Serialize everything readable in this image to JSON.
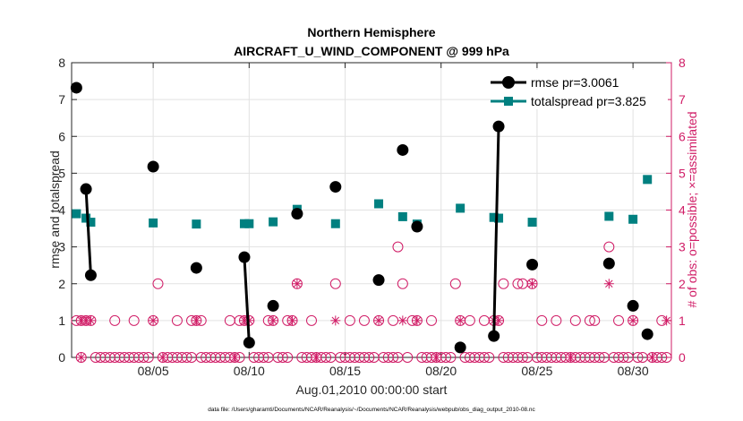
{
  "chart_data": {
    "type": "line",
    "title_line1": "Northern Hemisphere",
    "title_line2": "AIRCRAFT_U_WIND_COMPONENT @ 999 hPa",
    "xlabel": "Aug.01,2010 00:00:00 start",
    "ylabel_left": "rmse and totalspread",
    "ylabel_right": "# of obs: o=possible; ×=assimilated",
    "footnote": "data file: /Users/gharamti/Documents/NCAR/Reanalysis/~/Documents/NCAR/Reanalysis/webpub/obs_diag_output_2010-08.nc",
    "xlim": [
      0.75,
      32.0
    ],
    "ylim_left": [
      0,
      8
    ],
    "ylim_right": [
      0,
      8
    ],
    "x_ticks": [
      {
        "x": 5.0,
        "label": "08/05"
      },
      {
        "x": 10.0,
        "label": "08/10"
      },
      {
        "x": 15.0,
        "label": "08/15"
      },
      {
        "x": 20.0,
        "label": "08/20"
      },
      {
        "x": 25.0,
        "label": "08/25"
      },
      {
        "x": 30.0,
        "label": "08/30"
      }
    ],
    "y_ticks_left": [
      0,
      1,
      2,
      3,
      4,
      5,
      6,
      7,
      8
    ],
    "y_ticks_right": [
      0,
      1,
      2,
      3,
      4,
      5,
      6,
      7,
      8
    ],
    "legend": [
      {
        "name": "rmse pr=3.0061",
        "color": "#000000",
        "marker": "circle"
      },
      {
        "name": "totalspread pr=3.825",
        "color": "#008080",
        "marker": "square"
      }
    ],
    "colors": {
      "rmse": "#000000",
      "spread": "#008080",
      "obs": "#d01c66",
      "grid": "#e2e2e2",
      "axis": "#262626"
    },
    "series": [
      {
        "name": "rmse",
        "segments": [
          [
            [
              1.0,
              7.32
            ]
          ],
          [
            [
              1.5,
              4.57
            ],
            [
              1.75,
              2.23
            ]
          ],
          [
            [
              5.0,
              5.18
            ]
          ],
          [
            [
              7.25,
              2.43
            ]
          ],
          [
            [
              9.75,
              2.72
            ],
            [
              10.0,
              0.4
            ]
          ],
          [
            [
              11.25,
              1.4
            ]
          ],
          [
            [
              12.5,
              3.9
            ]
          ],
          [
            [
              14.5,
              4.63
            ]
          ],
          [
            [
              16.75,
              2.1
            ]
          ],
          [
            [
              18.0,
              5.63
            ]
          ],
          [
            [
              18.75,
              3.55
            ]
          ],
          [
            [
              21.0,
              0.27
            ]
          ],
          [
            [
              22.75,
              0.58
            ],
            [
              23.0,
              6.27
            ]
          ],
          [
            [
              24.75,
              2.52
            ]
          ],
          [
            [
              28.75,
              2.55
            ]
          ],
          [
            [
              30.0,
              1.4
            ]
          ],
          [
            [
              30.75,
              0.63
            ]
          ]
        ]
      },
      {
        "name": "totalspread",
        "segments": [
          [
            [
              1.0,
              3.9
            ]
          ],
          [
            [
              1.5,
              3.78
            ],
            [
              1.75,
              3.67
            ]
          ],
          [
            [
              5.0,
              3.65
            ]
          ],
          [
            [
              7.25,
              3.62
            ]
          ],
          [
            [
              9.75,
              3.63
            ],
            [
              10.0,
              3.63
            ]
          ],
          [
            [
              11.25,
              3.68
            ]
          ],
          [
            [
              12.5,
              4.02
            ]
          ],
          [
            [
              14.5,
              3.63
            ]
          ],
          [
            [
              16.75,
              4.17
            ]
          ],
          [
            [
              18.0,
              3.82
            ]
          ],
          [
            [
              18.75,
              3.62
            ]
          ],
          [
            [
              21.0,
              4.05
            ]
          ],
          [
            [
              22.75,
              3.8
            ],
            [
              23.0,
              3.78
            ]
          ],
          [
            [
              24.75,
              3.67
            ]
          ],
          [
            [
              28.75,
              3.83
            ]
          ],
          [
            [
              30.0,
              3.75
            ]
          ],
          [
            [
              30.75,
              4.83
            ]
          ]
        ]
      }
    ],
    "obs_possible": [
      [
        1.0,
        1
      ],
      [
        1.25,
        1
      ],
      [
        1.5,
        1
      ],
      [
        1.75,
        1
      ],
      [
        3.0,
        1
      ],
      [
        4.0,
        1
      ],
      [
        5.0,
        1
      ],
      [
        5.25,
        2
      ],
      [
        6.25,
        1
      ],
      [
        7.0,
        1
      ],
      [
        7.25,
        1
      ],
      [
        7.5,
        1
      ],
      [
        9.0,
        1
      ],
      [
        9.5,
        1
      ],
      [
        9.75,
        1
      ],
      [
        10.0,
        1
      ],
      [
        11.0,
        1
      ],
      [
        11.25,
        1
      ],
      [
        12.0,
        1
      ],
      [
        12.25,
        1
      ],
      [
        12.5,
        2
      ],
      [
        13.25,
        1
      ],
      [
        14.5,
        2
      ],
      [
        15.25,
        1
      ],
      [
        16.0,
        1
      ],
      [
        16.75,
        1
      ],
      [
        17.5,
        1
      ],
      [
        17.75,
        3
      ],
      [
        18.0,
        2
      ],
      [
        18.5,
        1
      ],
      [
        18.75,
        1
      ],
      [
        19.5,
        1
      ],
      [
        20.75,
        2
      ],
      [
        21.0,
        1
      ],
      [
        21.5,
        1
      ],
      [
        22.25,
        1
      ],
      [
        22.75,
        1
      ],
      [
        23.0,
        1
      ],
      [
        23.25,
        2
      ],
      [
        24.0,
        2
      ],
      [
        24.25,
        2
      ],
      [
        24.75,
        2
      ],
      [
        25.25,
        1
      ],
      [
        26.0,
        1
      ],
      [
        27.0,
        1
      ],
      [
        27.75,
        1
      ],
      [
        28.0,
        1
      ],
      [
        28.75,
        3
      ],
      [
        29.25,
        1
      ],
      [
        30.0,
        1
      ],
      [
        31.5,
        1
      ],
      [
        1.25,
        0
      ],
      [
        2.0,
        0
      ],
      [
        2.25,
        0
      ],
      [
        2.5,
        0
      ],
      [
        2.75,
        0
      ],
      [
        3.0,
        0
      ],
      [
        3.25,
        0
      ],
      [
        3.5,
        0
      ],
      [
        3.75,
        0
      ],
      [
        4.0,
        0
      ],
      [
        4.25,
        0
      ],
      [
        4.5,
        0
      ],
      [
        4.75,
        0
      ],
      [
        5.5,
        0
      ],
      [
        5.75,
        0
      ],
      [
        6.0,
        0
      ],
      [
        6.25,
        0
      ],
      [
        6.5,
        0
      ],
      [
        6.75,
        0
      ],
      [
        7.0,
        0
      ],
      [
        7.5,
        0
      ],
      [
        7.75,
        0
      ],
      [
        8.0,
        0
      ],
      [
        8.25,
        0
      ],
      [
        8.5,
        0
      ],
      [
        8.75,
        0
      ],
      [
        9.0,
        0
      ],
      [
        9.25,
        0
      ],
      [
        9.5,
        0
      ],
      [
        10.25,
        0
      ],
      [
        10.5,
        0
      ],
      [
        10.75,
        0
      ],
      [
        11.0,
        0
      ],
      [
        11.5,
        0
      ],
      [
        11.75,
        0
      ],
      [
        12.0,
        0
      ],
      [
        12.75,
        0
      ],
      [
        13.0,
        0
      ],
      [
        13.25,
        0
      ],
      [
        13.5,
        0
      ],
      [
        13.75,
        0
      ],
      [
        14.0,
        0
      ],
      [
        14.25,
        0
      ],
      [
        14.75,
        0
      ],
      [
        15.0,
        0
      ],
      [
        15.25,
        0
      ],
      [
        15.5,
        0
      ],
      [
        15.75,
        0
      ],
      [
        16.0,
        0
      ],
      [
        16.25,
        0
      ],
      [
        16.5,
        0
      ],
      [
        17.0,
        0
      ],
      [
        17.25,
        0
      ],
      [
        17.5,
        0
      ],
      [
        17.75,
        0
      ],
      [
        18.25,
        0
      ],
      [
        19.0,
        0
      ],
      [
        19.25,
        0
      ],
      [
        19.5,
        0
      ],
      [
        19.75,
        0
      ],
      [
        20.0,
        0
      ],
      [
        20.25,
        0
      ],
      [
        20.5,
        0
      ],
      [
        21.25,
        0
      ],
      [
        21.5,
        0
      ],
      [
        21.75,
        0
      ],
      [
        22.0,
        0
      ],
      [
        22.25,
        0
      ],
      [
        22.5,
        0
      ],
      [
        23.25,
        0
      ],
      [
        23.5,
        0
      ],
      [
        23.75,
        0
      ],
      [
        24.0,
        0
      ],
      [
        24.25,
        0
      ],
      [
        24.5,
        0
      ],
      [
        25.0,
        0
      ],
      [
        25.25,
        0
      ],
      [
        25.5,
        0
      ],
      [
        25.75,
        0
      ],
      [
        26.0,
        0
      ],
      [
        26.25,
        0
      ],
      [
        26.5,
        0
      ],
      [
        26.75,
        0
      ],
      [
        27.0,
        0
      ],
      [
        27.25,
        0
      ],
      [
        27.5,
        0
      ],
      [
        27.75,
        0
      ],
      [
        28.0,
        0
      ],
      [
        28.25,
        0
      ],
      [
        28.5,
        0
      ],
      [
        29.0,
        0
      ],
      [
        29.25,
        0
      ],
      [
        29.5,
        0
      ],
      [
        29.75,
        0
      ],
      [
        30.25,
        0
      ],
      [
        30.5,
        0
      ],
      [
        31.0,
        0
      ],
      [
        31.25,
        0
      ],
      [
        31.5,
        0
      ],
      [
        31.75,
        0
      ]
    ],
    "obs_assimilated": [
      [
        1.25,
        1
      ],
      [
        1.5,
        1
      ],
      [
        1.75,
        1
      ],
      [
        5.0,
        1
      ],
      [
        7.25,
        1
      ],
      [
        9.75,
        1
      ],
      [
        10.0,
        1
      ],
      [
        11.25,
        1
      ],
      [
        12.25,
        1
      ],
      [
        12.5,
        2
      ],
      [
        14.5,
        1
      ],
      [
        16.75,
        1
      ],
      [
        18.0,
        1
      ],
      [
        18.75,
        1
      ],
      [
        21.0,
        1
      ],
      [
        22.75,
        1
      ],
      [
        23.0,
        1
      ],
      [
        24.75,
        2
      ],
      [
        28.75,
        2
      ],
      [
        30.0,
        1
      ],
      [
        31.75,
        1
      ],
      [
        1.25,
        0
      ],
      [
        5.5,
        0
      ],
      [
        9.25,
        0
      ],
      [
        13.5,
        0
      ],
      [
        19.75,
        0
      ],
      [
        26.75,
        0
      ],
      [
        31.0,
        0
      ]
    ]
  }
}
